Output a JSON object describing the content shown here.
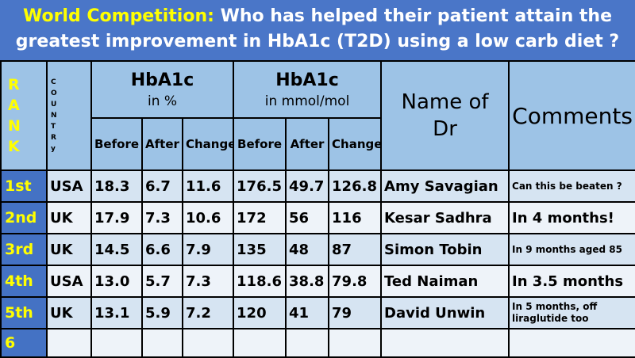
{
  "title": {
    "highlight": "World Competition:",
    "line1_rest": "Who has helped their patient  attain the",
    "line2": "greatest improvement in HbA1c (T2D) using a low carb diet ?"
  },
  "headers": {
    "rank_letters": [
      "R",
      "A",
      "N",
      "K"
    ],
    "country_letters": [
      "C",
      "O",
      "U",
      "N",
      "T",
      "R",
      "y"
    ],
    "hba_pct": "HbA1c",
    "hba_pct_unit": "in %",
    "hba_mmol": "HbA1c",
    "hba_mmol_unit": "in mmol/mol",
    "before": "Before",
    "after": "After",
    "change": "Change",
    "name_line1": "Name  of",
    "name_line2": "Dr",
    "comments": "Comments"
  },
  "rows": [
    {
      "rank": "1st",
      "country": "USA",
      "pct_before": "18.3",
      "pct_after": "6.7",
      "pct_change": "11.6",
      "mmol_before": "176.5",
      "mmol_after": "49.7",
      "mmol_change": "126.8",
      "name": "Amy Savagian",
      "comment": "Can this be beaten ?"
    },
    {
      "rank": "2nd",
      "country": "UK",
      "pct_before": "17.9",
      "pct_after": "7.3",
      "pct_change": "10.6",
      "mmol_before": "172",
      "mmol_after": "56",
      "mmol_change": "116",
      "name": "Kesar Sadhra",
      "comment": "In 4 months!"
    },
    {
      "rank": "3rd",
      "country": "UK",
      "pct_before": "14.5",
      "pct_after": "6.6",
      "pct_change": "7.9",
      "mmol_before": "135",
      "mmol_after": "48",
      "mmol_change": "87",
      "name": "Simon Tobin",
      "comment": "In 9 months aged 85"
    },
    {
      "rank": "4th",
      "country": "USA",
      "pct_before": "13.0",
      "pct_after": "5.7",
      "pct_change": "7.3",
      "mmol_before": "118.6",
      "mmol_after": "38.8",
      "mmol_change": "79.8",
      "name": "Ted Naiman",
      "comment": "In 3.5 months"
    },
    {
      "rank": "5th",
      "country": "UK",
      "pct_before": "13.1",
      "pct_after": "5.9",
      "pct_change": "7.2",
      "mmol_before": "120",
      "mmol_after": "41",
      "mmol_change": "79",
      "name": "David Unwin",
      "comment_a": "In 5 months",
      "comment_b": ", off liraglutide too"
    },
    {
      "rank": "6"
    }
  ]
}
